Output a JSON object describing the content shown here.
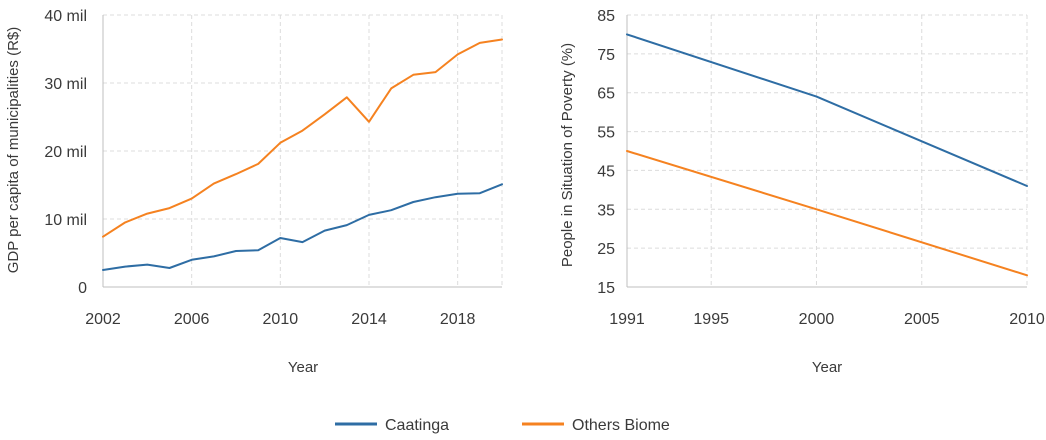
{
  "colors": {
    "caatinga": "#2E6DA4",
    "others": "#F58220",
    "grid": "#DCDCDC",
    "axis": "#BFBFBF",
    "text": "#3A3A3A"
  },
  "legend": {
    "items": [
      "Caatinga",
      "Others Biome"
    ],
    "placement": "bottom-center"
  },
  "chart_data": [
    {
      "type": "line",
      "title": "",
      "xlabel": "Year",
      "ylabel": "GDP per capita of municipalities (R$)",
      "xlim": [
        2002,
        2020
      ],
      "ylim": [
        0,
        40
      ],
      "x_ticks": [
        2002,
        2006,
        2010,
        2014,
        2018
      ],
      "y_ticks": [
        0,
        10,
        20,
        30,
        40
      ],
      "y_tick_labels": [
        "0",
        "10 mil",
        "20 mil",
        "30 mil",
        "40 mil"
      ],
      "grid": true,
      "x": [
        2002,
        2003,
        2004,
        2005,
        2006,
        2007,
        2008,
        2009,
        2010,
        2011,
        2012,
        2013,
        2014,
        2015,
        2016,
        2017,
        2018,
        2019,
        2020
      ],
      "series": [
        {
          "name": "Caatinga",
          "values": [
            2.5,
            3.0,
            3.3,
            2.8,
            4.0,
            4.5,
            5.3,
            5.4,
            7.2,
            6.6,
            8.3,
            9.1,
            10.6,
            11.3,
            12.5,
            13.2,
            13.7,
            13.8,
            15.1
          ]
        },
        {
          "name": "Others Biome",
          "values": [
            7.4,
            9.5,
            10.8,
            11.6,
            13.0,
            15.2,
            16.6,
            18.1,
            21.2,
            23.0,
            25.4,
            27.9,
            24.3,
            29.2,
            31.2,
            31.6,
            34.2,
            35.9,
            36.4
          ]
        }
      ]
    },
    {
      "type": "line",
      "title": "",
      "xlabel": "Year",
      "ylabel": "People in Situation of Poverty (%)",
      "xlim": [
        1991,
        2010
      ],
      "ylim": [
        15,
        85
      ],
      "x_ticks": [
        1991,
        1995,
        2000,
        2005,
        2010
      ],
      "y_ticks": [
        15,
        25,
        35,
        45,
        55,
        65,
        75,
        85
      ],
      "grid": true,
      "x": [
        1991,
        2000,
        2010
      ],
      "series": [
        {
          "name": "Caatinga",
          "values": [
            80,
            64,
            41
          ]
        },
        {
          "name": "Others Biome",
          "values": [
            50,
            35,
            18
          ]
        }
      ]
    }
  ]
}
